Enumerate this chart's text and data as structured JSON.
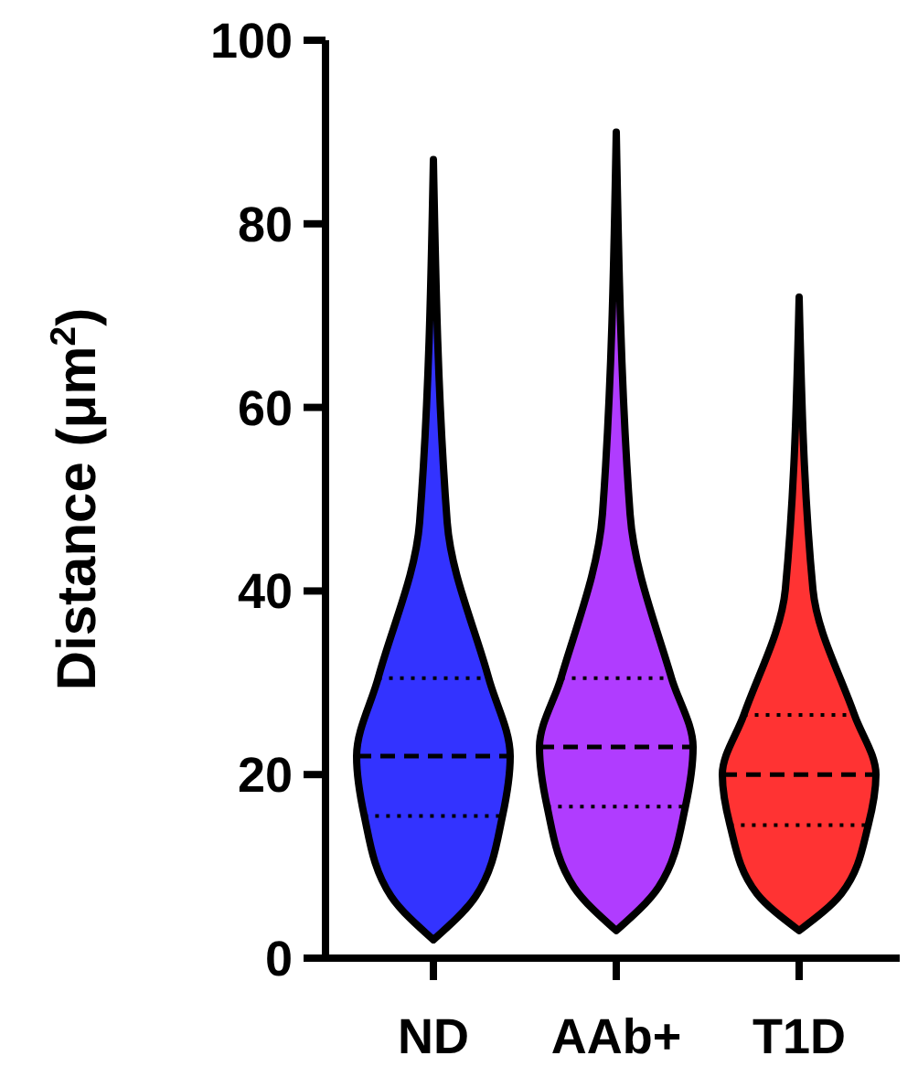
{
  "chart_data": {
    "type": "box",
    "ylabel": "Distance (μm$^{2}$)",
    "categories": [
      "ND",
      "AAb+",
      "T1D"
    ],
    "ylim": [
      0,
      100
    ],
    "yticks": [
      0,
      20,
      40,
      60,
      80,
      100
    ],
    "grid": false,
    "boxes": [
      {
        "low": 2,
        "q1": 15.5,
        "median": 22,
        "q3": 30.5,
        "high": 87
      },
      {
        "low": 3,
        "q1": 16.5,
        "median": 23,
        "q3": 30.5,
        "high": 90
      },
      {
        "low": 3,
        "q1": 14.5,
        "median": 20,
        "q3": 26.5,
        "high": 72
      }
    ],
    "colors": [
      "#3333ff",
      "#b03cff",
      "#ff3333"
    ]
  }
}
